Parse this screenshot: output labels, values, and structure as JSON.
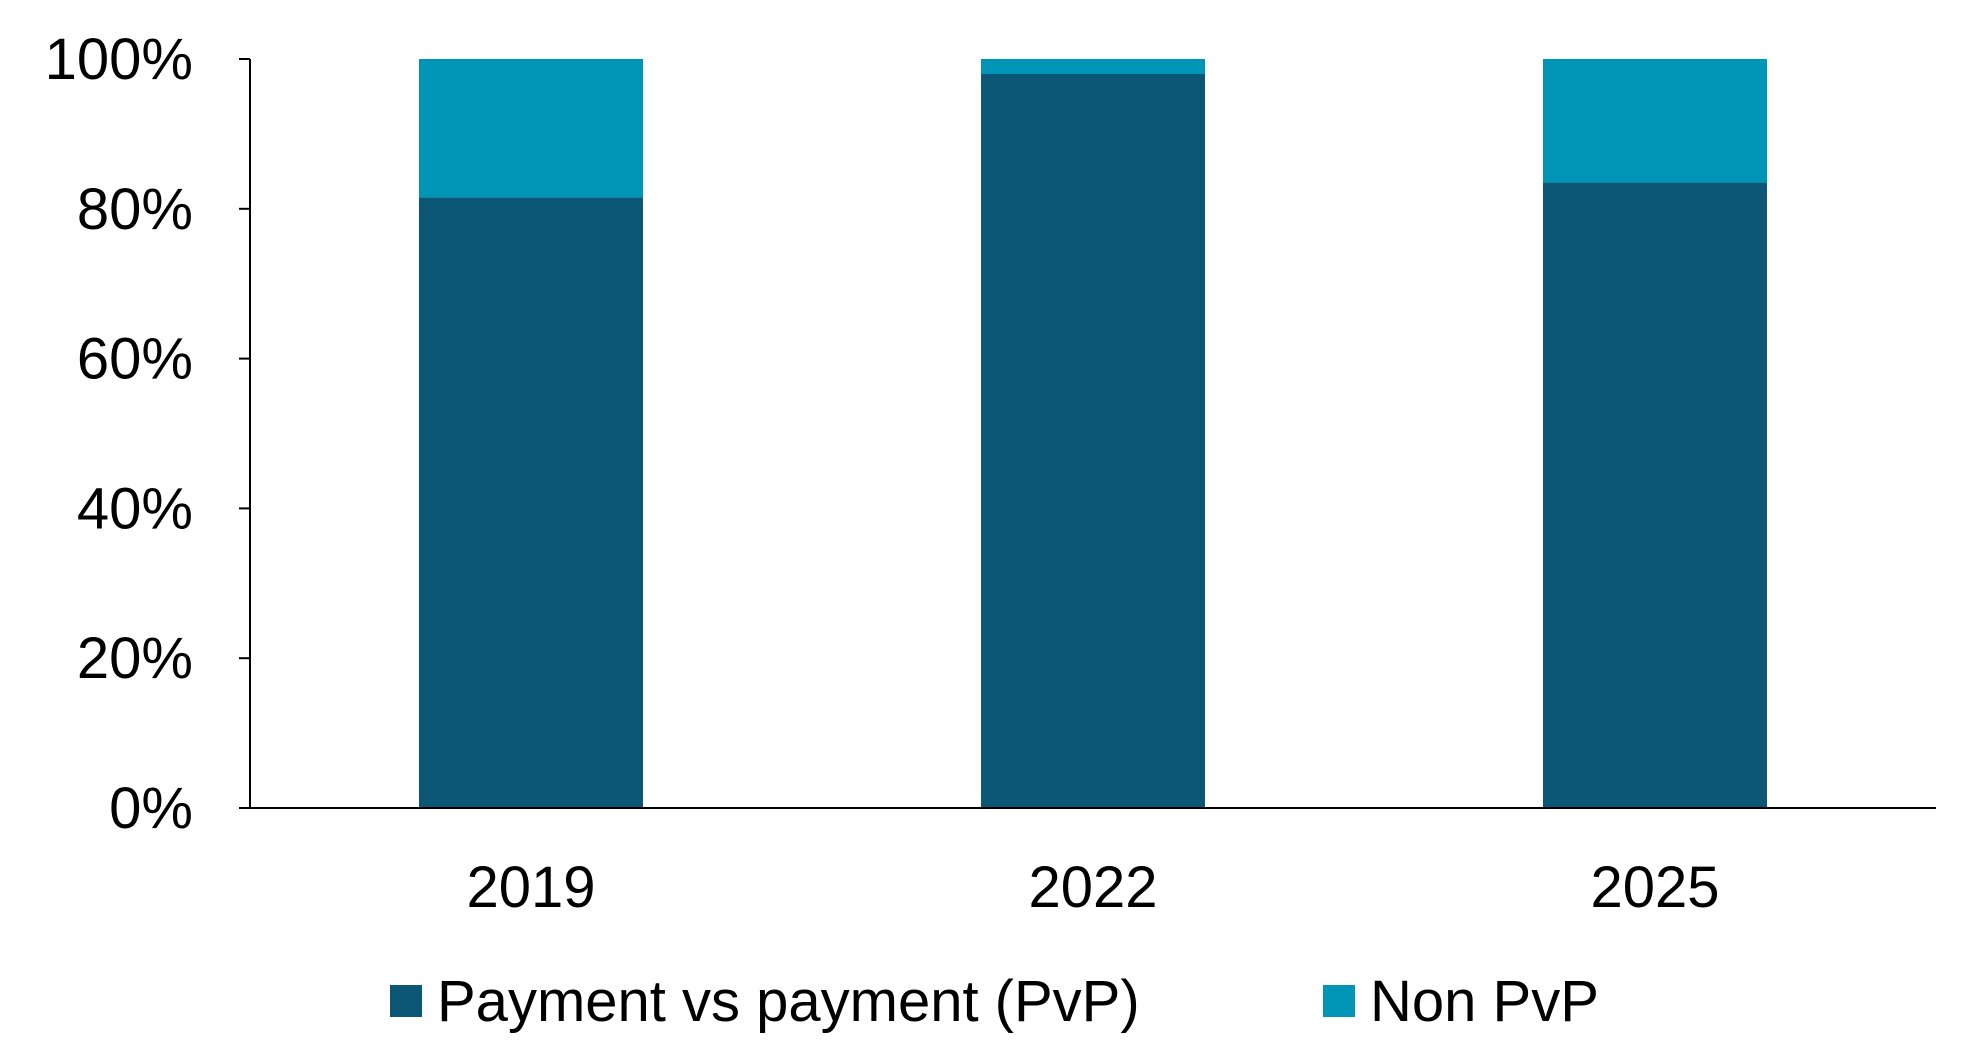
{
  "chart_data": {
    "type": "bar",
    "stacked": true,
    "categories": [
      "2019",
      "2022",
      "2025"
    ],
    "series": [
      {
        "name": "Payment vs payment (PvP)",
        "values": [
          81.5,
          98,
          83.5
        ],
        "color": "#0b5775"
      },
      {
        "name": "Non PvP",
        "values": [
          18.5,
          2,
          16.5
        ],
        "color": "#0095b6"
      }
    ],
    "ylim": [
      0,
      100
    ],
    "yticks": [
      0,
      20,
      40,
      60,
      80,
      100
    ],
    "ytick_labels": [
      "0%",
      "20%",
      "40%",
      "60%",
      "80%",
      "100%"
    ],
    "title": "",
    "xlabel": "",
    "ylabel": "",
    "grid": false,
    "legend_position": "bottom-center"
  }
}
